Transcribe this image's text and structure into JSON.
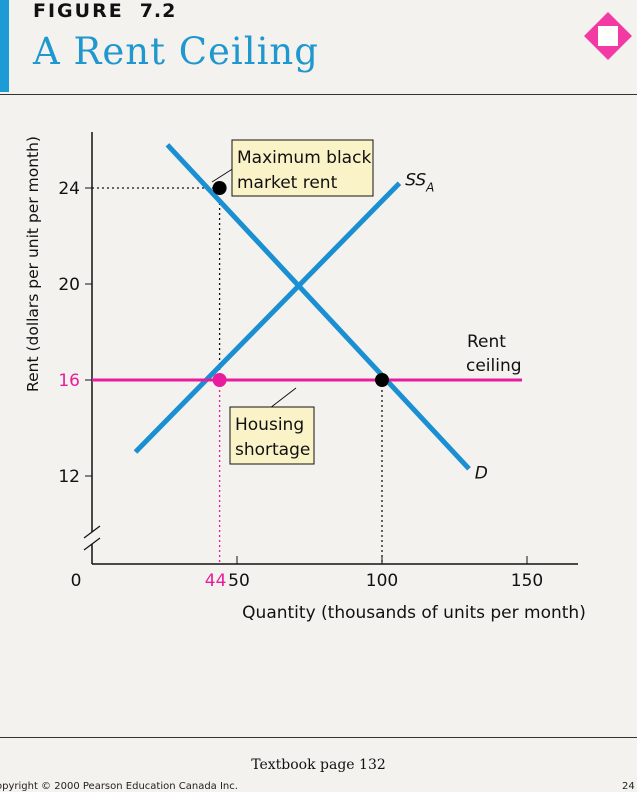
{
  "header": {
    "figure_label": "FIGURE",
    "figure_number": "7.2",
    "title": "A Rent Ceiling"
  },
  "footer": {
    "page_ref": "Textbook page 132",
    "copyright": "opyright © 2000 Pearson Education Canada Inc.",
    "page_number": "24"
  },
  "colors": {
    "accent": "#1d9bd6",
    "curve": "#1a8fd2",
    "ceiling": "#e81c9c",
    "point": "#000000"
  },
  "chart_data": {
    "type": "line",
    "xlabel": "Quantity (thousands of units per month)",
    "ylabel": "Rent (dollars per unit per month)",
    "xlim": [
      0,
      160
    ],
    "ylim": [
      8,
      26
    ],
    "axis_break": true,
    "x_ticks": [
      0,
      44,
      50,
      100,
      150
    ],
    "y_ticks": [
      12,
      16,
      20,
      24
    ],
    "series": [
      {
        "name": "SS",
        "subscript": "A",
        "points": [
          [
            15,
            13
          ],
          [
            106,
            24.2
          ]
        ]
      },
      {
        "name": "D",
        "points": [
          [
            26,
            25.8
          ],
          [
            130,
            12.3
          ]
        ]
      },
      {
        "name": "Rent ceiling",
        "points": [
          [
            0,
            16
          ],
          [
            150,
            16
          ]
        ]
      }
    ],
    "points": [
      {
        "x": 44,
        "y": 24,
        "color": "#000000"
      },
      {
        "x": 44,
        "y": 16,
        "color": "#e81c9c"
      },
      {
        "x": 100,
        "y": 16,
        "color": "#000000"
      }
    ],
    "annotations": {
      "black_market": {
        "line1": "Maximum black",
        "line2": "market rent"
      },
      "shortage": {
        "line1": "Housing",
        "line2": "shortage"
      },
      "ceiling": {
        "line1": "Rent",
        "line2": "ceiling"
      }
    }
  }
}
